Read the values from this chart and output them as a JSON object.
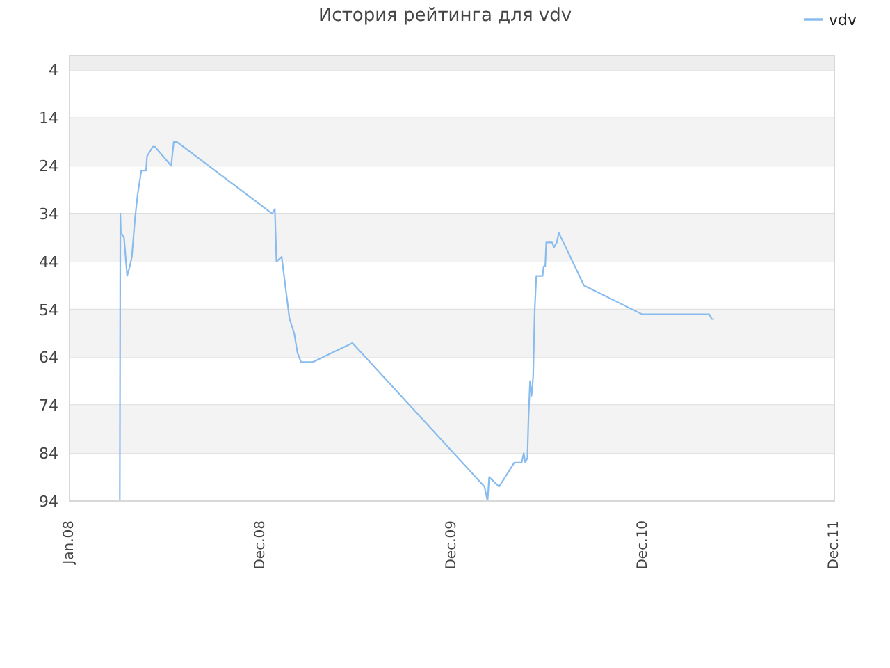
{
  "chart_data": {
    "type": "line",
    "title": "История рейтинга для vdv",
    "x": [
      "2008-04-06",
      "2008-04-07",
      "2008-04-08",
      "2008-04-14",
      "2008-04-20",
      "2008-04-25",
      "2008-04-29",
      "2008-05-05",
      "2008-05-10",
      "2008-05-17",
      "2008-05-26",
      "2008-05-28",
      "2008-06-08",
      "2008-06-12",
      "2008-07-13",
      "2008-07-18",
      "2008-07-24",
      "2009-01-22",
      "2009-01-27",
      "2009-01-30",
      "2009-02-09",
      "2009-02-17",
      "2009-02-24",
      "2009-03-05",
      "2009-03-11",
      "2009-03-18",
      "2009-04-09",
      "2009-06-24",
      "2010-03-03",
      "2010-03-09",
      "2010-03-12",
      "2010-03-31",
      "2010-04-29",
      "2010-05-13",
      "2010-05-17",
      "2010-05-20",
      "2010-05-24",
      "2010-05-26",
      "2010-05-29",
      "2010-06-01",
      "2010-06-04",
      "2010-06-07",
      "2010-06-10",
      "2010-06-22",
      "2010-06-24",
      "2010-06-27",
      "2010-06-29",
      "2010-07-10",
      "2010-07-14",
      "2010-07-19",
      "2010-07-23",
      "2010-09-09",
      "2010-12-29",
      "2011-05-06",
      "2011-05-11",
      "2011-05-15"
    ],
    "series": [
      {
        "name": "vdv",
        "color": "#88bbee",
        "values": [
          94,
          34,
          38,
          39,
          47,
          45,
          43,
          35,
          30,
          25,
          25,
          22,
          20,
          20,
          24,
          19,
          19,
          34,
          33,
          44,
          43,
          50,
          56,
          59,
          63,
          65,
          65,
          61,
          91,
          94,
          89,
          91,
          86,
          86,
          84,
          86,
          85,
          77,
          69,
          72,
          68,
          54,
          47,
          47,
          45,
          45,
          40,
          40,
          41,
          40,
          38,
          49,
          55,
          55,
          56,
          56
        ]
      }
    ],
    "xlim": [
      "2008-01-01",
      "2011-12-31"
    ],
    "xticks": [
      {
        "value": "2008-01-01",
        "label": "Jan.08"
      },
      {
        "value": "2008-12-31",
        "label": "Dec.08"
      },
      {
        "value": "2009-12-31",
        "label": "Dec.09"
      },
      {
        "value": "2010-12-31",
        "label": "Dec.10"
      },
      {
        "value": "2011-12-31",
        "label": "Dec.11"
      }
    ],
    "ylim": [
      94,
      1
    ],
    "yticks": [
      4,
      14,
      24,
      34,
      44,
      54,
      64,
      74,
      84,
      94
    ],
    "bands": [
      {
        "axis": "y",
        "from": 1,
        "to": 4,
        "color": "#eeeeee"
      },
      {
        "axis": "y",
        "from": 14,
        "to": 24,
        "color": "#f3f3f3"
      },
      {
        "axis": "y",
        "from": 34,
        "to": 44,
        "color": "#f3f3f3"
      },
      {
        "axis": "y",
        "from": 54,
        "to": 64,
        "color": "#f3f3f3"
      },
      {
        "axis": "y",
        "from": 74,
        "to": 84,
        "color": "#f3f3f3"
      }
    ],
    "grid": "y",
    "legend": "top right",
    "marker": "none",
    "line_style": "solid"
  }
}
